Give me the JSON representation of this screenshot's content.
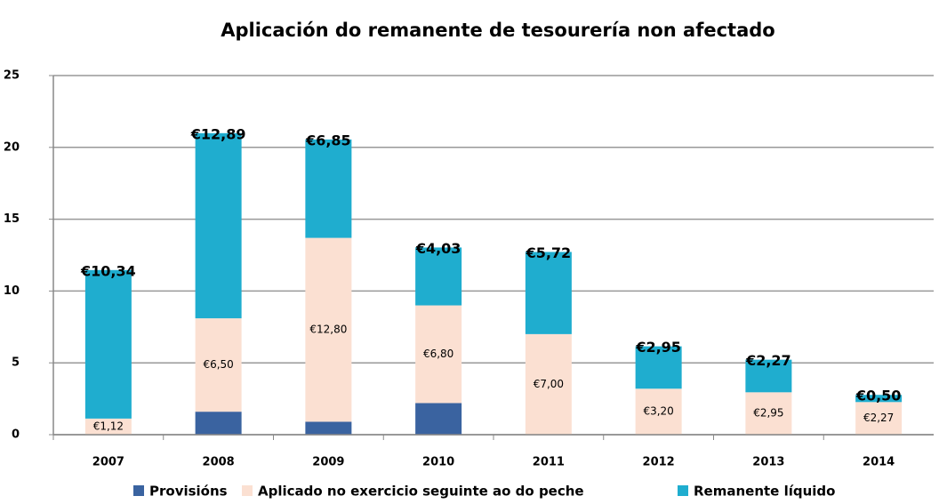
{
  "chart_data": {
    "type": "stacked_bar",
    "title": "Aplicación do remanente de tesourería non afectado",
    "categories": [
      "2007",
      "2008",
      "2009",
      "2010",
      "2011",
      "2012",
      "2013",
      "2014"
    ],
    "series": [
      {
        "name": "Provisións",
        "color": "#3a63a0",
        "values": [
          null,
          1.6,
          0.9,
          2.2,
          null,
          null,
          null,
          null
        ]
      },
      {
        "name": "Aplicado no exercicio seguinte ao do peche",
        "color": "#fbe0d2",
        "values": [
          1.12,
          6.5,
          12.8,
          6.8,
          7.0,
          3.2,
          2.95,
          2.27
        ],
        "value_labels": [
          "€1,12",
          "€6,50",
          "€12,80",
          "€6,80",
          "€7,00",
          "€3,20",
          "€2,95",
          "€2,27"
        ]
      },
      {
        "name": "Remanente líquido",
        "color": "#1fadcf",
        "values": [
          10.34,
          12.89,
          6.85,
          4.03,
          5.72,
          2.95,
          2.27,
          0.5
        ],
        "value_labels": [
          "€10,34",
          "€12,89",
          "€6,85",
          "€4,03",
          "€5,72",
          "€2,95",
          "€2,27",
          "€0,50"
        ]
      }
    ],
    "ylim": [
      0,
      25
    ],
    "yticks": [
      0,
      5,
      10,
      15,
      20,
      25
    ],
    "grid": true
  }
}
